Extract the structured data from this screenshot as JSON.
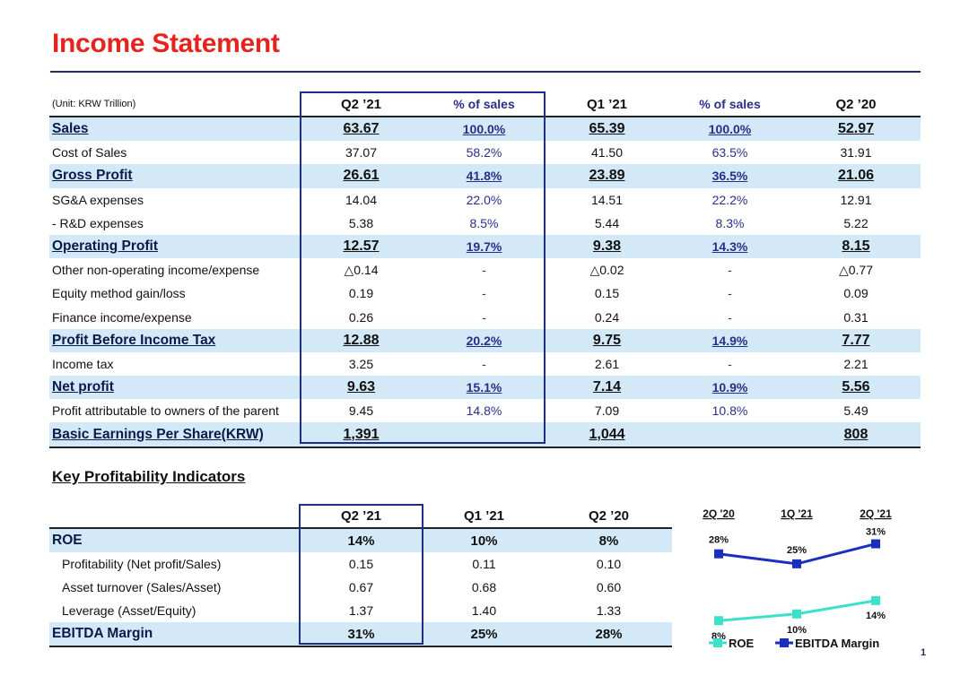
{
  "title": "Income Statement",
  "page_number": "1",
  "income": {
    "unit_label": "(Unit: KRW Trillion)",
    "headers": [
      "Q2 ’21",
      "% of sales",
      "Q1 ’21",
      "% of sales",
      "Q2 ’20"
    ],
    "rows": [
      {
        "label": "Sales",
        "v": [
          "63.67",
          "100.0%",
          "65.39",
          "100.0%",
          "52.97"
        ],
        "hl": true
      },
      {
        "label": "Cost of Sales",
        "v": [
          "37.07",
          "58.2%",
          "41.50",
          "63.5%",
          "31.91"
        ],
        "hl": false
      },
      {
        "label": "Gross Profit",
        "v": [
          "26.61",
          "41.8%",
          "23.89",
          "36.5%",
          "21.06"
        ],
        "hl": true
      },
      {
        "label": "SG&A expenses",
        "v": [
          "14.04",
          "22.0%",
          "14.51",
          "22.2%",
          "12.91"
        ],
        "hl": false
      },
      {
        "label": " - R&D expenses",
        "v": [
          "5.38",
          "8.5%",
          "5.44",
          "8.3%",
          "5.22"
        ],
        "hl": false
      },
      {
        "label": "Operating Profit",
        "v": [
          "12.57",
          "19.7%",
          "9.38",
          "14.3%",
          "8.15"
        ],
        "hl": true
      },
      {
        "label": "Other non-operating income/expense",
        "v": [
          "△0.14",
          "-",
          "△0.02",
          "-",
          "△0.77"
        ],
        "hl": false
      },
      {
        "label": "Equity method gain/loss",
        "v": [
          "0.19",
          "-",
          "0.15",
          "-",
          "0.09"
        ],
        "hl": false
      },
      {
        "label": "Finance income/expense",
        "v": [
          "0.26",
          "-",
          "0.24",
          "-",
          "0.31"
        ],
        "hl": false
      },
      {
        "label": "Profit Before Income Tax",
        "v": [
          "12.88",
          "20.2%",
          "9.75",
          "14.9%",
          "7.77"
        ],
        "hl": true
      },
      {
        "label": "Income tax",
        "v": [
          "3.25",
          "-",
          "2.61",
          "-",
          "2.21"
        ],
        "hl": false
      },
      {
        "label": "Net profit",
        "v": [
          "9.63",
          "15.1%",
          "7.14",
          "10.9%",
          "5.56"
        ],
        "hl": true
      },
      {
        "label": "Profit attributable to owners of the parent",
        "v": [
          "9.45",
          "14.8%",
          "7.09",
          "10.8%",
          "5.49"
        ],
        "hl": false
      },
      {
        "label": "Basic Earnings Per Share(KRW)",
        "v": [
          "1,391",
          "",
          "1,044",
          "",
          "808"
        ],
        "hl": true
      }
    ]
  },
  "kpi": {
    "title": "Key Profitability Indicators",
    "headers": [
      "Q2 ’21",
      "Q1 ’21",
      "Q2 ’20"
    ],
    "rows": [
      {
        "label": "ROE",
        "v": [
          "14%",
          "10%",
          "8%"
        ],
        "hl": true,
        "sub": false
      },
      {
        "label": "Profitability (Net profit/Sales)",
        "v": [
          "0.15",
          "0.11",
          "0.10"
        ],
        "hl": false,
        "sub": true
      },
      {
        "label": "Asset turnover (Sales/Asset)",
        "v": [
          "0.67",
          "0.68",
          "0.60"
        ],
        "hl": false,
        "sub": true
      },
      {
        "label": "Leverage (Asset/Equity)",
        "v": [
          "1.37",
          "1.40",
          "1.33"
        ],
        "hl": false,
        "sub": true
      },
      {
        "label": "EBITDA Margin",
        "v": [
          "31%",
          "25%",
          "28%"
        ],
        "hl": true,
        "sub": false
      }
    ]
  },
  "chart_data": {
    "type": "line",
    "categories": [
      "2Q '20",
      "1Q '21",
      "2Q '21"
    ],
    "series": [
      {
        "name": "ROE",
        "values": [
          8,
          10,
          14
        ],
        "labels": [
          "8%",
          "10%",
          "14%"
        ],
        "color": "#3de0c8"
      },
      {
        "name": "EBITDA Margin",
        "values": [
          28,
          25,
          31
        ],
        "labels": [
          "28%",
          "25%",
          "31%"
        ],
        "color": "#1a2fbf"
      }
    ],
    "ylim": [
      0,
      40
    ],
    "title": "",
    "xlabel": "",
    "ylabel": ""
  }
}
